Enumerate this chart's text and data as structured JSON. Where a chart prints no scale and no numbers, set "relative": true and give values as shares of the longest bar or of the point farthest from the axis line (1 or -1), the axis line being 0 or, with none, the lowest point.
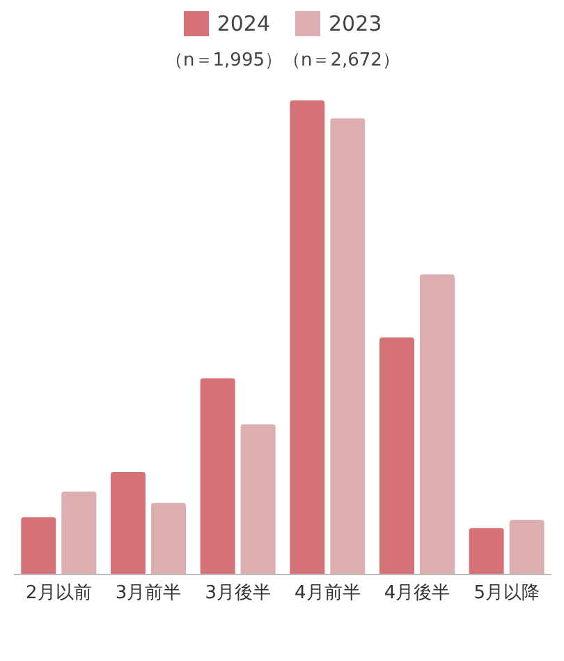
{
  "chart_data": {
    "type": "bar",
    "subtitle": "（n＝1,995）（n＝2,672）",
    "relative": true,
    "legend": "top",
    "categories": [
      "2月以前",
      "3月前半",
      "3月後半",
      "4月前半",
      "4月後半",
      "5月以降"
    ],
    "series": [
      {
        "name": "2024",
        "color": "#d47277",
        "values": [
          0.121,
          0.216,
          0.414,
          1,
          0.5,
          0.098
        ]
      },
      {
        "name": "2023",
        "color": "#dcaeb0",
        "values": [
          0.175,
          0.151,
          0.317,
          0.962,
          0.633,
          0.115
        ]
      }
    ]
  }
}
